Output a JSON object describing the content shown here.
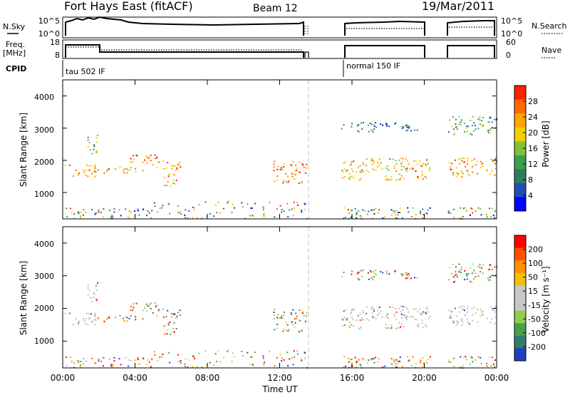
{
  "header": {
    "title": "Fort Hays East (fitACF)",
    "beam": "Beam 12",
    "date": "19/Mar/2011"
  },
  "params": {
    "nsky_label": "N.Sky",
    "nsky_ticks": [
      "10^5",
      "10^0"
    ],
    "nsearch_label": "N.Search",
    "nsearch_ticks": [
      "10^5",
      "10^0"
    ],
    "freq_label_1": "Freq.",
    "freq_label_2": "[MHz]",
    "freq_ticks": [
      "18",
      "8"
    ],
    "nave_label": "Nave",
    "nave_ticks": [
      "60",
      "0"
    ],
    "cpid_label": "CPID",
    "cpid_segments": [
      "tau 502 IF",
      "normal 150 IF"
    ]
  },
  "colors": {
    "power_scale": [
      "#0000ff",
      "#1f4fb5",
      "#2e7d5f",
      "#3aa050",
      "#7fc23a",
      "#f2d000",
      "#ffa500",
      "#ff6a00",
      "#ff2000"
    ],
    "velocity_scale": [
      "#1f3fbf",
      "#2f7f6f",
      "#4aa04a",
      "#8fcf4f",
      "#c8c8c8",
      "#c8c8c8",
      "#f2c000",
      "#ff9000",
      "#ff5000",
      "#ff0000"
    ],
    "ground_scatter": "#c0c0c0"
  },
  "chart_data": [
    {
      "type": "heatmap",
      "name": "power",
      "ylabel": "Slant Range [km]",
      "y_ticks": [
        1000,
        2000,
        3000,
        4000
      ],
      "ylim": [
        180,
        4500
      ],
      "colorbar_label": "Power [dB]",
      "colorbar_ticks": [
        28,
        24,
        20,
        16,
        12,
        8,
        4
      ],
      "clim": [
        0,
        32
      ],
      "x_ticks": [
        "00:00",
        "04:00",
        "08:00",
        "12:00",
        "16:00",
        "20:00",
        "00:00"
      ],
      "xlim_hours": [
        0,
        24
      ],
      "gaps_hours": [
        [
          13.6,
          15.4
        ],
        [
          20.3,
          21.3
        ]
      ],
      "features": [
        {
          "t": [
            0.1,
            1.9
          ],
          "range_km": [
            1500,
            1900
          ],
          "power_db": 24
        },
        {
          "t": [
            1.2,
            1.9
          ],
          "range_km": [
            2200,
            2800
          ],
          "power_db": 14
        },
        {
          "t": [
            1.9,
            4.6
          ],
          "range_km": [
            1600,
            1800
          ],
          "power_db": 22
        },
        {
          "t": [
            3.7,
            5.3
          ],
          "range_km": [
            1800,
            2200
          ],
          "power_db": 26
        },
        {
          "t": [
            5.5,
            6.5
          ],
          "range_km": [
            1200,
            2000
          ],
          "power_db": 24
        },
        {
          "t": [
            11.6,
            13.5
          ],
          "range_km": [
            1300,
            2000
          ],
          "power_db": 26
        },
        {
          "t": [
            15.4,
            20.3
          ],
          "range_km": [
            1400,
            2100
          ],
          "power_db": 22
        },
        {
          "t": [
            15.4,
            19.6
          ],
          "range_km": [
            2900,
            3200
          ],
          "power_db": 8
        },
        {
          "t": [
            21.3,
            24.0
          ],
          "range_km": [
            1500,
            2100
          ],
          "power_db": 24
        },
        {
          "t": [
            21.3,
            24.0
          ],
          "range_km": [
            2800,
            3400
          ],
          "power_db": 12
        }
      ]
    },
    {
      "type": "heatmap",
      "name": "velocity",
      "ylabel": "Slant Range [km]",
      "y_ticks": [
        1000,
        2000,
        3000,
        4000
      ],
      "ylim": [
        180,
        4500
      ],
      "colorbar_label": "Velocity [m s⁻¹]",
      "colorbar_ticks": [
        "200",
        "100",
        "50",
        "15",
        "-15",
        "-50",
        "-100",
        "-200"
      ],
      "clim": [
        -250,
        250
      ],
      "xlabel": "Time UT",
      "x_ticks": [
        "00:00",
        "04:00",
        "08:00",
        "12:00",
        "16:00",
        "20:00",
        "00:00"
      ],
      "xlim_hours": [
        0,
        24
      ],
      "gaps_hours": [
        [
          13.6,
          15.4
        ],
        [
          20.3,
          21.3
        ]
      ]
    }
  ]
}
